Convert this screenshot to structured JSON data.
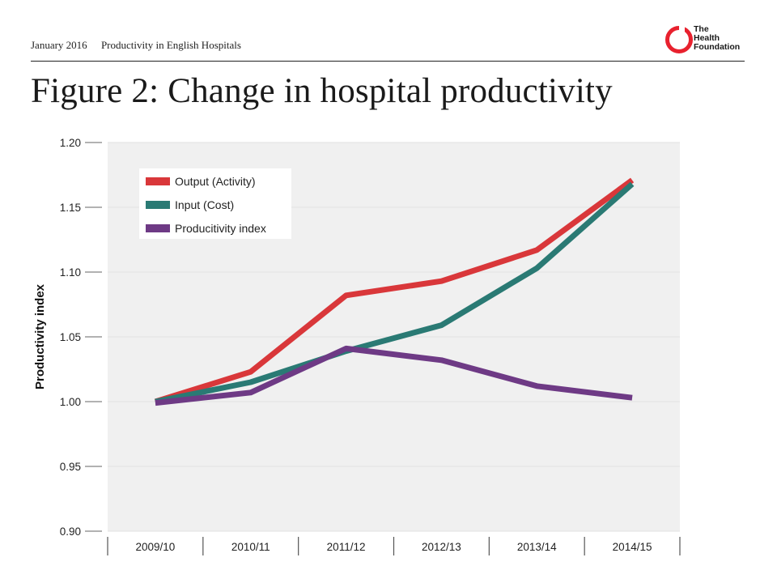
{
  "header": {
    "date": "January 2016",
    "publication": "Productivity in English Hospitals",
    "title": "Figure 2: Change in hospital productivity"
  },
  "logo": {
    "lines": [
      "The",
      "Health",
      "Foundation"
    ],
    "color": "#e8212e"
  },
  "chart_data": {
    "type": "line",
    "title": "",
    "xlabel": "",
    "ylabel": "Productivity index",
    "categories": [
      "2009/10",
      "2010/11",
      "2011/12",
      "2012/13",
      "2013/14",
      "2014/15"
    ],
    "ylim": [
      0.9,
      1.2
    ],
    "yticks": [
      "1.20",
      "1.15",
      "1.10",
      "1.05",
      "1.00",
      "0.95",
      "0.90"
    ],
    "grid": true,
    "legend_position": "top-left",
    "plot_background": "#f0f0f0",
    "series": [
      {
        "name": "Output (Activity)",
        "color": "#d9373a",
        "values": [
          1.0,
          1.023,
          1.082,
          1.093,
          1.117,
          1.171
        ]
      },
      {
        "name": "Input (Cost)",
        "color": "#2a7a74",
        "values": [
          1.0,
          1.015,
          1.039,
          1.059,
          1.103,
          1.168
        ]
      },
      {
        "name": "Producitivity index",
        "color": "#6e3a85",
        "values": [
          0.999,
          1.007,
          1.041,
          1.032,
          1.012,
          1.003
        ]
      }
    ]
  }
}
